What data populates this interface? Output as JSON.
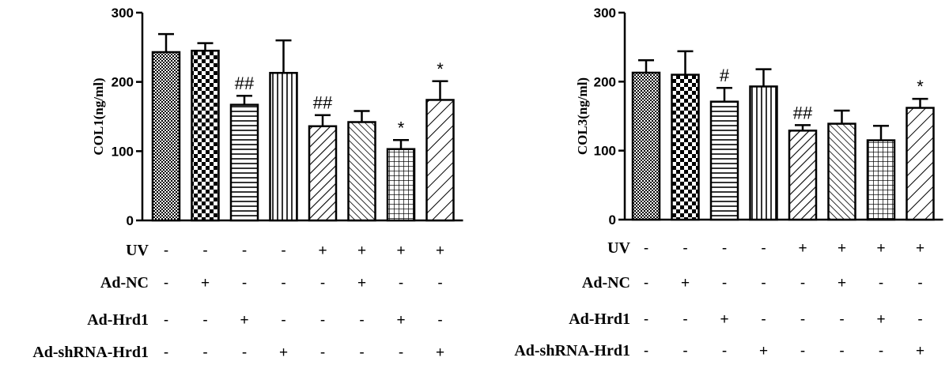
{
  "chart_data": [
    {
      "type": "bar",
      "ylabel": "COL1(ng/ml)",
      "ylim": [
        0,
        300
      ],
      "yticks": [
        0,
        100,
        200,
        300
      ],
      "values": [
        243,
        245,
        167,
        213,
        136,
        142,
        103,
        174
      ],
      "errors": [
        26,
        11,
        13,
        47,
        16,
        16,
        13,
        27
      ],
      "annotations": [
        "",
        "",
        "##",
        "",
        "##",
        "",
        "*",
        "*"
      ],
      "patterns": [
        "dense-dots",
        "checker",
        "horizontal",
        "vertical",
        "diagonal-right",
        "diagonal-left",
        "grid",
        "diagonal-right-sparse"
      ],
      "conditions": [
        {
          "label": "UV",
          "values": [
            "-",
            "-",
            "-",
            "-",
            "+",
            "+",
            "+",
            "+"
          ]
        },
        {
          "label": "Ad-NC",
          "values": [
            "-",
            "+",
            "-",
            "-",
            "-",
            "+",
            "-",
            "-"
          ]
        },
        {
          "label": "Ad-Hrd1",
          "values": [
            "-",
            "-",
            "+",
            "-",
            "-",
            "-",
            "+",
            "-"
          ]
        },
        {
          "label": "Ad-shRNA-Hrd1",
          "values": [
            "-",
            "-",
            "-",
            "+",
            "-",
            "-",
            "-",
            "+"
          ]
        }
      ]
    },
    {
      "type": "bar",
      "ylabel": "COL3(ng/ml)",
      "ylim": [
        0,
        300
      ],
      "yticks": [
        0,
        100,
        200,
        300
      ],
      "values": [
        213,
        210,
        171,
        193,
        129,
        139,
        115,
        162
      ],
      "errors": [
        18,
        34,
        20,
        25,
        8,
        19,
        21,
        13
      ],
      "annotations": [
        "",
        "",
        "#",
        "",
        "##",
        "",
        "",
        "*"
      ],
      "patterns": [
        "dense-dots",
        "checker",
        "horizontal",
        "vertical",
        "diagonal-right",
        "diagonal-left",
        "grid",
        "diagonal-right-sparse"
      ],
      "conditions": [
        {
          "label": "UV",
          "values": [
            "-",
            "-",
            "-",
            "-",
            "+",
            "+",
            "+",
            "+"
          ]
        },
        {
          "label": "Ad-NC",
          "values": [
            "-",
            "+",
            "-",
            "-",
            "-",
            "+",
            "-",
            "-"
          ]
        },
        {
          "label": "Ad-Hrd1",
          "values": [
            "-",
            "-",
            "+",
            "-",
            "-",
            "-",
            "+",
            "-"
          ]
        },
        {
          "label": "Ad-shRNA-Hrd1",
          "values": [
            "-",
            "-",
            "-",
            "+",
            "-",
            "-",
            "-",
            "+"
          ]
        }
      ]
    }
  ]
}
